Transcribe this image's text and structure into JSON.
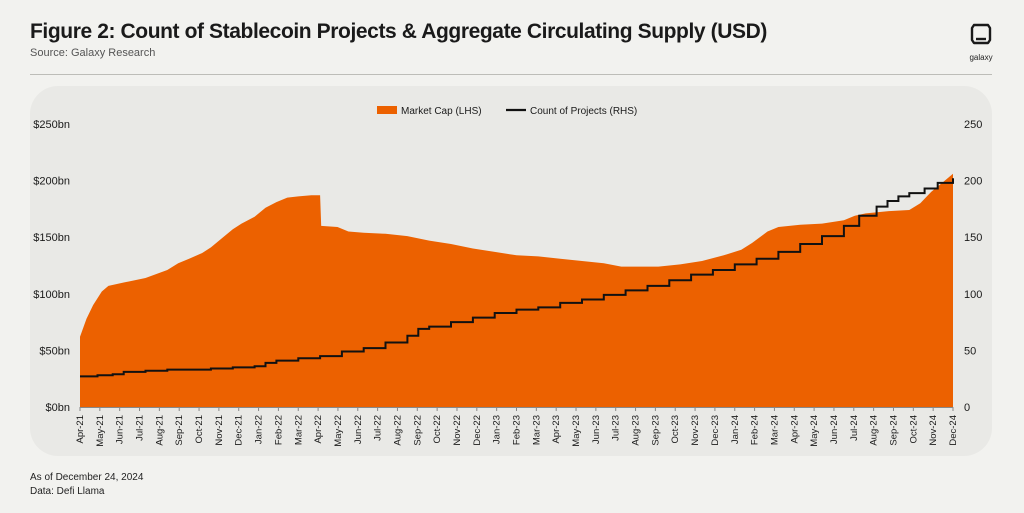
{
  "header": {
    "title": "Figure 2: Count of Stablecoin Projects & Aggregate Circulating Supply (USD)",
    "source": "Source: Galaxy Research",
    "logo_text": "galaxy",
    "logo_icon": "galaxy-logo-icon"
  },
  "footer": {
    "as_of": "As of December 24, 2024",
    "data_source": "Data: Defi Llama"
  },
  "colors": {
    "area": "#ec6100",
    "line": "#111111",
    "background": "#f2f2ef"
  },
  "chart_data": {
    "type": "area",
    "title": "",
    "legend_position": "top-center",
    "categories": [
      "Apr-21",
      "May-21",
      "Jun-21",
      "Jul-21",
      "Aug-21",
      "Sep-21",
      "Oct-21",
      "Nov-21",
      "Dec-21",
      "Jan-22",
      "Feb-22",
      "Mar-22",
      "Apr-22",
      "May-22",
      "Jun-22",
      "Jul-22",
      "Aug-22",
      "Sep-22",
      "Oct-22",
      "Nov-22",
      "Dec-22",
      "Jan-23",
      "Feb-23",
      "Mar-23",
      "Apr-23",
      "May-23",
      "Jun-23",
      "Jul-23",
      "Aug-23",
      "Sep-23",
      "Oct-23",
      "Nov-23",
      "Dec-23",
      "Jan-24",
      "Feb-24",
      "Mar-24",
      "Apr-24",
      "May-24",
      "Jun-24",
      "Jul-24",
      "Aug-24",
      "Sep-24",
      "Oct-24",
      "Nov-24",
      "Dec-24"
    ],
    "y_left": {
      "min": 0,
      "max": 250,
      "ticks": [
        0,
        50,
        100,
        150,
        200,
        250
      ],
      "tick_labels": [
        "$0bn",
        "$50bn",
        "$100bn",
        "$150bn",
        "$200bn",
        "$250bn"
      ]
    },
    "y_right": {
      "min": 0,
      "max": 250,
      "ticks": [
        0,
        50,
        100,
        150,
        200,
        250
      ],
      "tick_labels": [
        "0",
        "50",
        "100",
        "150",
        "200",
        "250"
      ]
    },
    "series": [
      {
        "name": "Market Cap (LHS)",
        "kind": "area",
        "axis": "left",
        "unit": "USD bn",
        "points": [
          [
            0,
            62
          ],
          [
            0.3,
            78
          ],
          [
            0.6,
            90
          ],
          [
            1,
            102
          ],
          [
            1.3,
            107
          ],
          [
            2,
            110
          ],
          [
            3,
            114
          ],
          [
            4,
            121
          ],
          [
            4.5,
            127
          ],
          [
            5,
            131
          ],
          [
            5.6,
            136
          ],
          [
            6,
            141
          ],
          [
            6.5,
            149
          ],
          [
            7,
            157
          ],
          [
            7.4,
            162
          ],
          [
            8,
            168
          ],
          [
            8.5,
            176
          ],
          [
            9,
            181
          ],
          [
            9.5,
            185
          ],
          [
            10,
            186
          ],
          [
            10.6,
            187
          ],
          [
            11,
            187
          ],
          [
            11.05,
            160
          ],
          [
            11.8,
            159
          ],
          [
            12.3,
            155
          ],
          [
            13,
            154
          ],
          [
            14,
            153
          ],
          [
            15,
            151
          ],
          [
            16,
            147
          ],
          [
            17,
            144
          ],
          [
            18,
            140
          ],
          [
            19,
            137
          ],
          [
            20,
            134
          ],
          [
            21,
            133
          ],
          [
            22,
            131
          ],
          [
            23,
            129
          ],
          [
            24,
            127
          ],
          [
            24.8,
            124
          ],
          [
            25.5,
            124
          ],
          [
            26.5,
            124
          ],
          [
            27.5,
            126
          ],
          [
            28.5,
            129
          ],
          [
            29.5,
            134
          ],
          [
            30.3,
            139
          ],
          [
            30.8,
            145
          ],
          [
            31.5,
            155
          ],
          [
            32,
            159
          ],
          [
            33,
            161
          ],
          [
            34,
            162
          ],
          [
            35,
            165
          ],
          [
            35.5,
            169
          ],
          [
            36,
            171
          ],
          [
            37,
            173
          ],
          [
            38,
            174
          ],
          [
            38.5,
            180
          ],
          [
            39,
            190
          ],
          [
            39.5,
            198
          ],
          [
            40,
            206
          ]
        ]
      },
      {
        "name": "Count of Projects (RHS)",
        "kind": "line",
        "axis": "right",
        "unit": "projects",
        "points": [
          [
            0,
            27
          ],
          [
            0.8,
            28
          ],
          [
            1.5,
            29
          ],
          [
            2,
            31
          ],
          [
            3,
            32
          ],
          [
            4,
            33
          ],
          [
            5,
            33
          ],
          [
            6,
            34
          ],
          [
            7,
            35
          ],
          [
            8,
            36
          ],
          [
            8.5,
            39
          ],
          [
            9,
            41
          ],
          [
            10,
            43
          ],
          [
            11,
            45
          ],
          [
            12,
            49
          ],
          [
            13,
            52
          ],
          [
            14,
            57
          ],
          [
            15,
            63
          ],
          [
            15.5,
            69
          ],
          [
            16,
            71
          ],
          [
            17,
            75
          ],
          [
            18,
            79
          ],
          [
            19,
            83
          ],
          [
            20,
            86
          ],
          [
            21,
            88
          ],
          [
            22,
            92
          ],
          [
            23,
            95
          ],
          [
            24,
            99
          ],
          [
            25,
            103
          ],
          [
            26,
            107
          ],
          [
            27,
            112
          ],
          [
            28,
            117
          ],
          [
            29,
            121
          ],
          [
            30,
            126
          ],
          [
            31,
            131
          ],
          [
            32,
            137
          ],
          [
            33,
            144
          ],
          [
            34,
            151
          ],
          [
            35,
            160
          ],
          [
            35.7,
            169
          ],
          [
            36.5,
            177
          ],
          [
            37,
            182
          ],
          [
            37.5,
            186
          ],
          [
            38,
            189
          ],
          [
            38.7,
            193
          ],
          [
            39.3,
            198
          ],
          [
            40,
            202
          ]
        ]
      }
    ]
  }
}
